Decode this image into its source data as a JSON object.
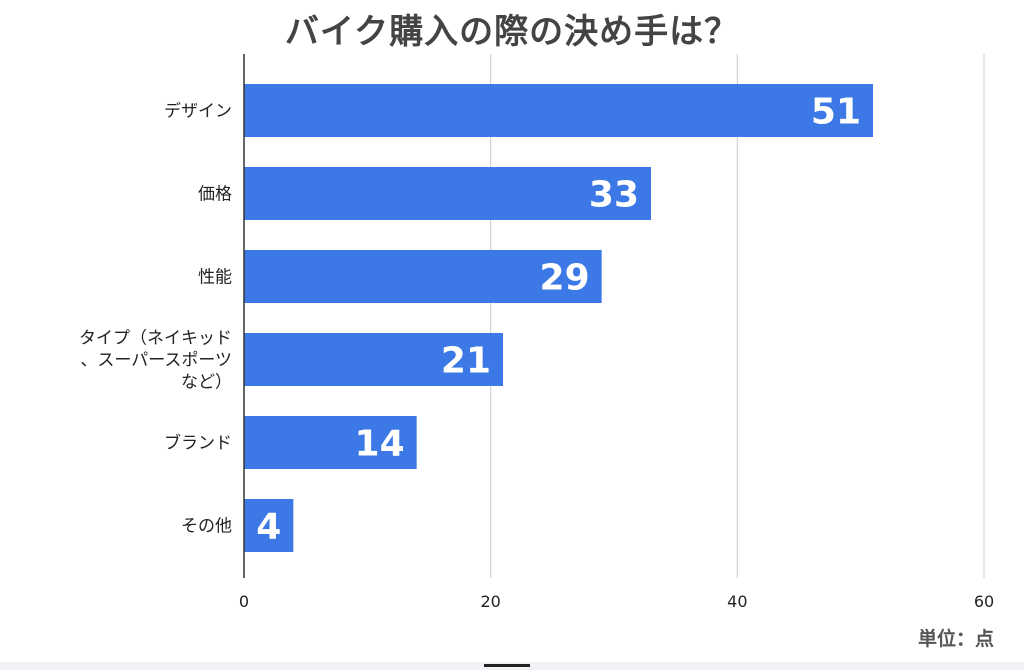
{
  "chart_data": {
    "type": "bar",
    "orientation": "horizontal",
    "title": "バイク購入の際の決め手は？",
    "unit_label": "単位：点",
    "categories": [
      [
        "デザイン"
      ],
      [
        "価格"
      ],
      [
        "性能"
      ],
      [
        "タイプ（ネイキッド",
        "、スーパースポーツ",
        "など）"
      ],
      [
        "ブランド"
      ],
      [
        "その他"
      ]
    ],
    "values": [
      51,
      33,
      29,
      21,
      14,
      4
    ],
    "xlim": [
      0,
      60
    ],
    "xticks": [
      "0",
      "20",
      "40",
      "60"
    ],
    "grid": true,
    "data_labels": true
  },
  "colors": {
    "bar": "#3d79e6",
    "grid": "#cccccc",
    "axis": "#333333",
    "title": "#444444",
    "label": "#222222",
    "value_label": "#ffffff"
  }
}
